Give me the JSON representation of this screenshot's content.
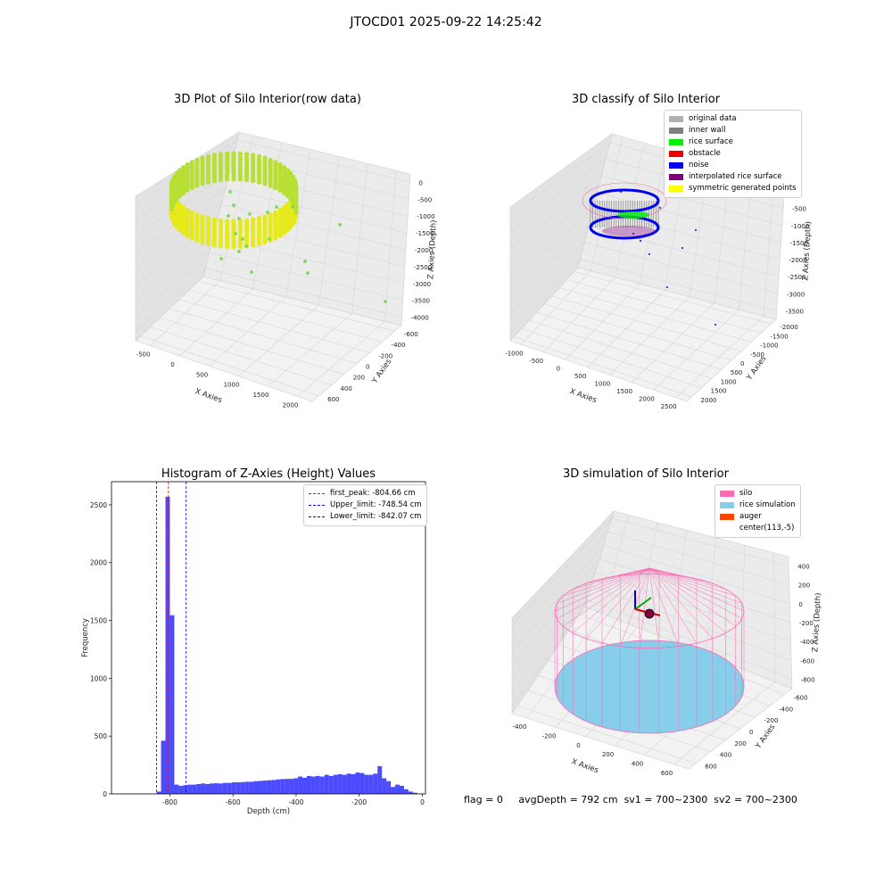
{
  "suptitle": "JTOCD01 2025-09-22 14:25:42",
  "panels": {
    "raw": {
      "title": "3D Plot of Silo Interior(row data)",
      "x_label": "X Axies",
      "y_label": "Y Axies",
      "z_label": "Z Axies (Depth)",
      "x_ticks": [
        "-500",
        "0",
        "500",
        "1000",
        "1500",
        "2000"
      ],
      "y_ticks": [
        "-600",
        "-400",
        "-200",
        "0",
        "200",
        "400",
        "600"
      ],
      "z_ticks": [
        "0",
        "-500",
        "-1000",
        "-1500",
        "-2000",
        "-2500",
        "-3000",
        "-3500",
        "-4000"
      ]
    },
    "classify": {
      "title": "3D classify of Silo Interior",
      "x_label": "X Axies",
      "y_label": "Y Axies",
      "z_label": "Z Axies (Depth)",
      "x_ticks": [
        "-1000",
        "-500",
        "0",
        "500",
        "1000",
        "1500",
        "2000",
        "2500"
      ],
      "y_ticks": [
        "-2000",
        "-1500",
        "-1000",
        "-500",
        "0",
        "500",
        "1000",
        "1500",
        "2000"
      ],
      "z_ticks": [
        "0",
        "-500",
        "-1000",
        "-1500",
        "-2000",
        "-2500",
        "-3000",
        "-3500"
      ],
      "legend": [
        {
          "label": "original data",
          "color": "#b0b0b0"
        },
        {
          "label": "inner wall",
          "color": "#808080"
        },
        {
          "label": "rice surface",
          "color": "#00ee00"
        },
        {
          "label": "obstacle",
          "color": "#ee0000"
        },
        {
          "label": "noise",
          "color": "#0000ee"
        },
        {
          "label": "interpolated rice surface",
          "color": "#800080"
        },
        {
          "label": "symmetric generated points",
          "color": "#ffff00"
        }
      ]
    },
    "simulation": {
      "title": "3D simulation of Silo Interior",
      "x_label": "X Axies",
      "y_label": "Y Axies",
      "z_label": "Z Axies (Depth)",
      "x_ticks": [
        "-400",
        "-200",
        "0",
        "200",
        "400",
        "600"
      ],
      "y_ticks": [
        "-600",
        "-400",
        "-200",
        "0",
        "200",
        "400",
        "600"
      ],
      "z_ticks": [
        "400",
        "200",
        "0",
        "-200",
        "-400",
        "-600",
        "-800"
      ],
      "legend": [
        {
          "label": "silo",
          "color": "#ff69b4"
        },
        {
          "label": "rice simulation",
          "color": "#87ceeb"
        },
        {
          "label": "auger",
          "color": "#ff4500"
        },
        {
          "label": "center(113,-5)",
          "color": ""
        }
      ]
    }
  },
  "footer": {
    "flag": "flag = 0",
    "avg_depth": "avgDepth = 792 cm",
    "sv1": "sv1 = 700~2300",
    "sv2": "sv2 = 700~2300"
  },
  "chart_data": {
    "type": "bar",
    "title": "Histogram of Z-Axies (Height) Values",
    "xlabel": "Depth (cm)",
    "ylabel": "Frequency",
    "xlim": [
      -985,
      10
    ],
    "ylim": [
      0,
      2700
    ],
    "x_ticks": [
      -800,
      -600,
      -400,
      -200,
      0
    ],
    "y_ticks": [
      0,
      500,
      1000,
      1500,
      2000,
      2500
    ],
    "bins": [
      {
        "x0": -842,
        "x1": -828,
        "value": 20
      },
      {
        "x0": -828,
        "x1": -814,
        "value": 460
      },
      {
        "x0": -814,
        "x1": -800,
        "value": 2570
      },
      {
        "x0": -800,
        "x1": -786,
        "value": 1545
      },
      {
        "x0": -786,
        "x1": -772,
        "value": 80
      },
      {
        "x0": -772,
        "x1": -758,
        "value": 70
      },
      {
        "x0": -758,
        "x1": -744,
        "value": 75
      },
      {
        "x0": -744,
        "x1": -730,
        "value": 80
      },
      {
        "x0": -730,
        "x1": -716,
        "value": 80
      },
      {
        "x0": -716,
        "x1": -702,
        "value": 85
      },
      {
        "x0": -702,
        "x1": -688,
        "value": 90
      },
      {
        "x0": -688,
        "x1": -674,
        "value": 85
      },
      {
        "x0": -674,
        "x1": -660,
        "value": 90
      },
      {
        "x0": -660,
        "x1": -646,
        "value": 92
      },
      {
        "x0": -646,
        "x1": -632,
        "value": 90
      },
      {
        "x0": -632,
        "x1": -618,
        "value": 95
      },
      {
        "x0": -618,
        "x1": -604,
        "value": 95
      },
      {
        "x0": -604,
        "x1": -590,
        "value": 100
      },
      {
        "x0": -590,
        "x1": -576,
        "value": 100
      },
      {
        "x0": -576,
        "x1": -562,
        "value": 102
      },
      {
        "x0": -562,
        "x1": -548,
        "value": 105
      },
      {
        "x0": -548,
        "x1": -534,
        "value": 105
      },
      {
        "x0": -534,
        "x1": -520,
        "value": 110
      },
      {
        "x0": -520,
        "x1": -506,
        "value": 112
      },
      {
        "x0": -506,
        "x1": -492,
        "value": 115
      },
      {
        "x0": -492,
        "x1": -478,
        "value": 118
      },
      {
        "x0": -478,
        "x1": -464,
        "value": 120
      },
      {
        "x0": -464,
        "x1": -450,
        "value": 125
      },
      {
        "x0": -450,
        "x1": -436,
        "value": 128
      },
      {
        "x0": -436,
        "x1": -422,
        "value": 130
      },
      {
        "x0": -422,
        "x1": -408,
        "value": 130
      },
      {
        "x0": -408,
        "x1": -394,
        "value": 135
      },
      {
        "x0": -394,
        "x1": -380,
        "value": 150
      },
      {
        "x0": -380,
        "x1": -366,
        "value": 140
      },
      {
        "x0": -366,
        "x1": -352,
        "value": 155
      },
      {
        "x0": -352,
        "x1": -338,
        "value": 150
      },
      {
        "x0": -338,
        "x1": -324,
        "value": 155
      },
      {
        "x0": -324,
        "x1": -310,
        "value": 150
      },
      {
        "x0": -310,
        "x1": -296,
        "value": 165
      },
      {
        "x0": -296,
        "x1": -282,
        "value": 155
      },
      {
        "x0": -282,
        "x1": -268,
        "value": 165
      },
      {
        "x0": -268,
        "x1": -254,
        "value": 170
      },
      {
        "x0": -254,
        "x1": -240,
        "value": 165
      },
      {
        "x0": -240,
        "x1": -226,
        "value": 175
      },
      {
        "x0": -226,
        "x1": -212,
        "value": 170
      },
      {
        "x0": -212,
        "x1": -198,
        "value": 185
      },
      {
        "x0": -198,
        "x1": -184,
        "value": 180
      },
      {
        "x0": -184,
        "x1": -170,
        "value": 165
      },
      {
        "x0": -170,
        "x1": -156,
        "value": 165
      },
      {
        "x0": -156,
        "x1": -142,
        "value": 175
      },
      {
        "x0": -142,
        "x1": -128,
        "value": 240
      },
      {
        "x0": -128,
        "x1": -114,
        "value": 135
      },
      {
        "x0": -114,
        "x1": -100,
        "value": 110
      },
      {
        "x0": -100,
        "x1": -86,
        "value": 60
      },
      {
        "x0": -86,
        "x1": -72,
        "value": 80
      },
      {
        "x0": -72,
        "x1": -58,
        "value": 70
      },
      {
        "x0": -58,
        "x1": -44,
        "value": 40
      },
      {
        "x0": -44,
        "x1": -30,
        "value": 20
      },
      {
        "x0": -30,
        "x1": -16,
        "value": 10
      }
    ],
    "bar_color": "#0000ff",
    "vlines": [
      {
        "label": "first_peak: -804.66 cm",
        "x": -804.66,
        "color": "#ff0000"
      },
      {
        "label": "Upper_limit: -748.54 cm",
        "x": -748.54,
        "color": "#0000ff"
      },
      {
        "label": "Lower_limit: -842.07 cm",
        "x": -842.07,
        "color": "#0000ff"
      }
    ],
    "legend_position": "top-right"
  }
}
